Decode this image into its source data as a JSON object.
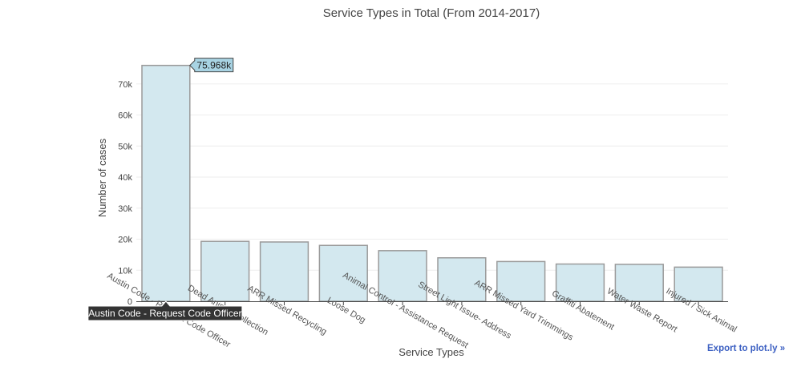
{
  "chart_data": {
    "type": "bar",
    "title": "Service Types in Total (From 2014-2017)",
    "xlabel": "Service Types",
    "ylabel": "Number of cases",
    "ylim": [
      0,
      80000
    ],
    "yticks": [
      0,
      10000,
      20000,
      30000,
      40000,
      50000,
      60000,
      70000
    ],
    "ytick_labels": [
      "0",
      "10k",
      "20k",
      "30k",
      "40k",
      "50k",
      "60k",
      "70k"
    ],
    "grid": true,
    "categories": [
      "Austin Code - Request Code Officer",
      "Dead Animal Collection",
      "ARR Missed Recycling",
      "Loose Dog",
      "Animal Control - Assistance Request",
      "Street Light Issue- Address",
      "ARR Missed Yard Trimmings",
      "Graffiti Abatement",
      "Water Waste Report",
      "Injured / Sick Animal"
    ],
    "values": [
      75968,
      19300,
      19100,
      18000,
      16300,
      14000,
      12800,
      12000,
      11900,
      11000
    ],
    "bar_color": "#d3e8ef",
    "bar_outline_color": "#9a9a9a",
    "hover": {
      "index": 0,
      "value_label": "75.968k",
      "category_label": "Austin Code - Request Code Officer",
      "value_bg": "#a8d3e3",
      "category_bg": "#333333"
    }
  },
  "export_link": "Export to plot.ly »"
}
